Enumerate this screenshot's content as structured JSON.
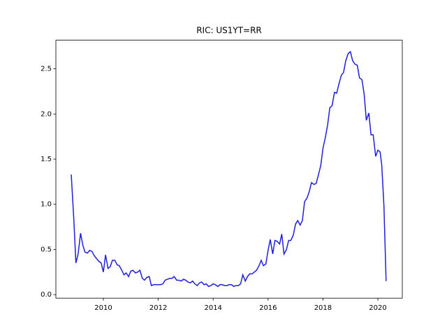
{
  "chart_data": {
    "type": "line",
    "title": "RIC: US1YT=RR",
    "color": "#1f1fe0",
    "x": [
      2008.83,
      2008.92,
      2009.0,
      2009.08,
      2009.17,
      2009.25,
      2009.33,
      2009.42,
      2009.5,
      2009.58,
      2009.67,
      2009.75,
      2009.83,
      2009.92,
      2010.0,
      2010.08,
      2010.17,
      2010.25,
      2010.33,
      2010.42,
      2010.5,
      2010.58,
      2010.67,
      2010.75,
      2010.83,
      2010.92,
      2011.0,
      2011.08,
      2011.17,
      2011.25,
      2011.33,
      2011.42,
      2011.5,
      2011.58,
      2011.67,
      2011.75,
      2011.83,
      2011.92,
      2012.0,
      2012.08,
      2012.17,
      2012.25,
      2012.33,
      2012.42,
      2012.5,
      2012.58,
      2012.67,
      2012.75,
      2012.83,
      2012.92,
      2013.0,
      2013.08,
      2013.17,
      2013.25,
      2013.33,
      2013.42,
      2013.5,
      2013.58,
      2013.67,
      2013.75,
      2013.83,
      2013.92,
      2014.0,
      2014.08,
      2014.17,
      2014.25,
      2014.33,
      2014.42,
      2014.5,
      2014.58,
      2014.67,
      2014.75,
      2014.83,
      2014.92,
      2015.0,
      2015.08,
      2015.17,
      2015.25,
      2015.33,
      2015.42,
      2015.5,
      2015.58,
      2015.67,
      2015.75,
      2015.83,
      2015.92,
      2016.0,
      2016.08,
      2016.17,
      2016.25,
      2016.33,
      2016.42,
      2016.5,
      2016.58,
      2016.67,
      2016.75,
      2016.83,
      2016.92,
      2017.0,
      2017.08,
      2017.17,
      2017.25,
      2017.33,
      2017.42,
      2017.5,
      2017.58,
      2017.67,
      2017.75,
      2017.83,
      2017.92,
      2018.0,
      2018.08,
      2018.17,
      2018.25,
      2018.33,
      2018.42,
      2018.5,
      2018.58,
      2018.67,
      2018.75,
      2018.83,
      2018.92,
      2019.0,
      2019.08,
      2019.17,
      2019.25,
      2019.33,
      2019.42,
      2019.5,
      2019.58,
      2019.67,
      2019.75,
      2019.83,
      2019.92,
      2020.0,
      2020.08,
      2020.14,
      2020.22,
      2020.3
    ],
    "values": [
      1.33,
      0.85,
      0.35,
      0.45,
      0.68,
      0.55,
      0.47,
      0.46,
      0.49,
      0.48,
      0.43,
      0.4,
      0.37,
      0.35,
      0.25,
      0.44,
      0.29,
      0.31,
      0.38,
      0.38,
      0.33,
      0.32,
      0.27,
      0.22,
      0.24,
      0.2,
      0.26,
      0.27,
      0.24,
      0.25,
      0.27,
      0.18,
      0.16,
      0.19,
      0.2,
      0.1,
      0.11,
      0.11,
      0.11,
      0.11,
      0.12,
      0.16,
      0.17,
      0.18,
      0.18,
      0.2,
      0.16,
      0.16,
      0.15,
      0.17,
      0.16,
      0.14,
      0.13,
      0.15,
      0.12,
      0.1,
      0.13,
      0.14,
      0.11,
      0.12,
      0.09,
      0.1,
      0.12,
      0.11,
      0.09,
      0.11,
      0.11,
      0.1,
      0.1,
      0.11,
      0.11,
      0.09,
      0.1,
      0.1,
      0.12,
      0.22,
      0.15,
      0.2,
      0.23,
      0.23,
      0.25,
      0.27,
      0.32,
      0.38,
      0.32,
      0.34,
      0.49,
      0.61,
      0.45,
      0.6,
      0.59,
      0.56,
      0.67,
      0.45,
      0.5,
      0.6,
      0.6,
      0.66,
      0.78,
      0.82,
      0.77,
      0.82,
      1.03,
      1.07,
      1.14,
      1.24,
      1.22,
      1.23,
      1.32,
      1.43,
      1.62,
      1.73,
      1.88,
      2.07,
      2.09,
      2.24,
      2.23,
      2.33,
      2.43,
      2.46,
      2.59,
      2.67,
      2.69,
      2.59,
      2.55,
      2.54,
      2.4,
      2.38,
      2.22,
      1.93,
      2.01,
      1.77,
      1.77,
      1.53,
      1.6,
      1.58,
      1.44,
      0.99,
      0.15
    ],
    "xlim": [
      2008.27,
      2020.89
    ],
    "xticks": [
      2010,
      2012,
      2014,
      2016,
      2018,
      2020
    ],
    "ylim": [
      -0.039,
      2.817
    ],
    "yticks": [
      {
        "value": 0,
        "label": "0.0"
      },
      0.5,
      {
        "value": 1,
        "label": "1.0"
      },
      1.5,
      {
        "value": 2,
        "label": "2.0"
      },
      2.5
    ]
  }
}
